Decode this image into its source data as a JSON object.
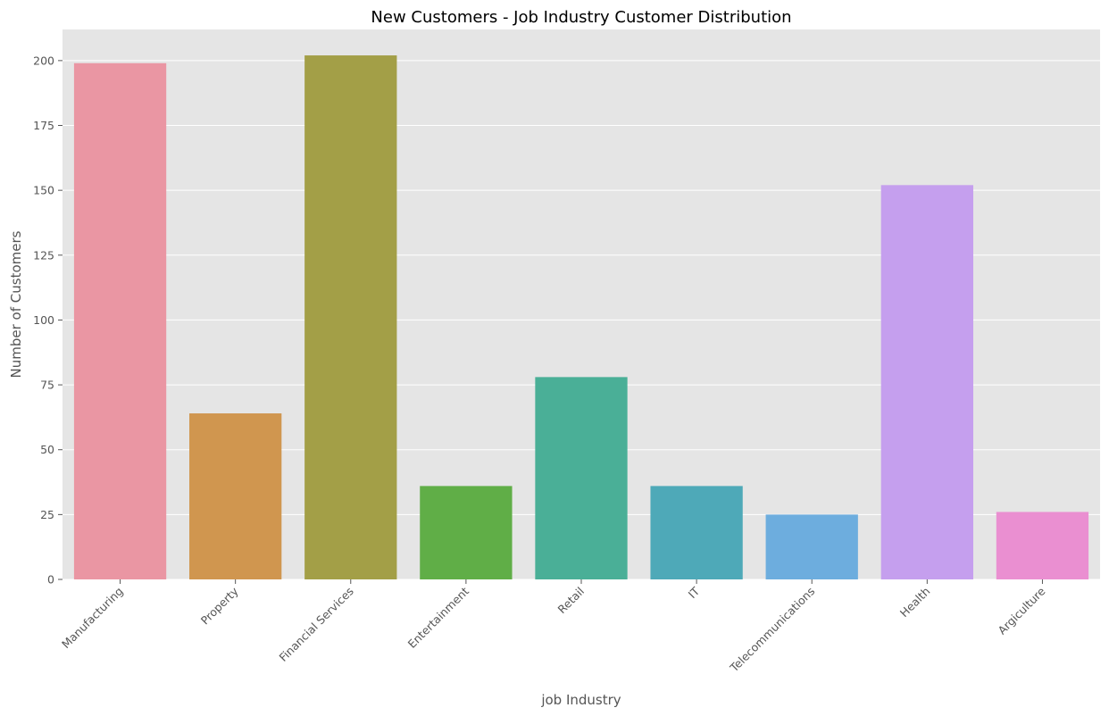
{
  "chart_data": {
    "type": "bar",
    "title": "New Customers - Job Industry Customer Distribution",
    "xlabel": "job Industry",
    "ylabel": "Number of Customers",
    "categories": [
      "Manufacturing",
      "Property",
      "Financial Services",
      "Entertainment",
      "Retail",
      "IT",
      "Telecommunications",
      "Health",
      "Argiculture"
    ],
    "values": [
      199,
      64,
      202,
      36,
      78,
      36,
      25,
      152,
      26
    ],
    "colors": [
      "#ea96a3",
      "#d0964f",
      "#a39f47",
      "#60ae47",
      "#4aaf97",
      "#4ea9b8",
      "#6dadde",
      "#c59fee",
      "#ea8fd1"
    ],
    "ylim": [
      0,
      212
    ],
    "yticks": [
      0,
      25,
      50,
      75,
      100,
      125,
      150,
      175,
      200
    ],
    "grid": true,
    "legend": "none",
    "background": "#e5e5e5"
  }
}
